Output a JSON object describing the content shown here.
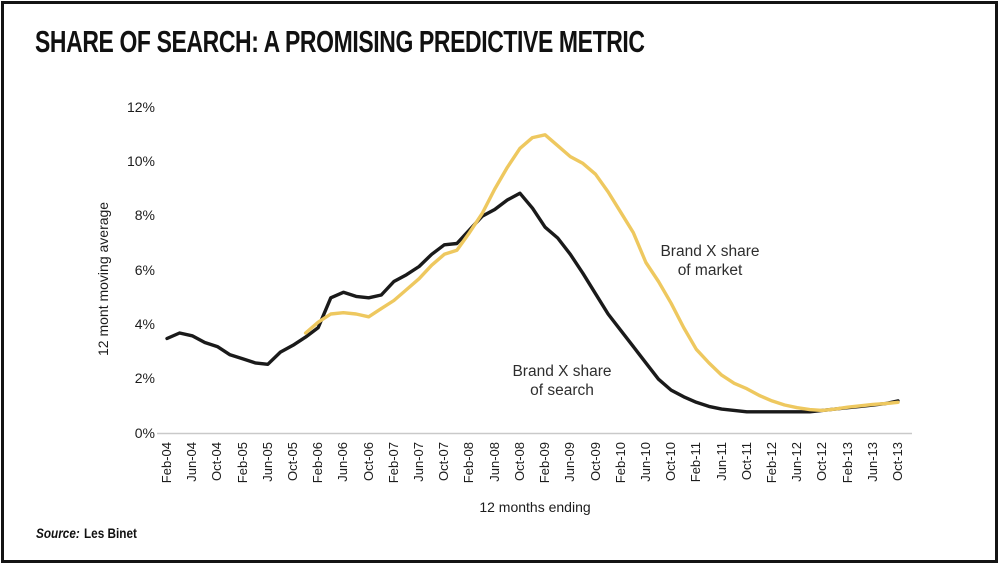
{
  "header": {
    "title": "SHARE OF SEARCH: A PROMISING PREDICTIVE METRIC"
  },
  "footer": {
    "source_label": "Source:",
    "source_value": "Les Binet"
  },
  "chart_data": {
    "type": "line",
    "title": "SHARE OF SEARCH: A PROMISING PREDICTIVE METRIC",
    "xlabel": "12 months ending",
    "ylabel": "12 mont moving average",
    "ylim": [
      0,
      12
    ],
    "y_tick_labels": [
      "0%",
      "2%",
      "4%",
      "6%",
      "8%",
      "10%",
      "12%"
    ],
    "x_tick_labels": [
      "Feb-04",
      "Jun-04",
      "Oct-04",
      "Feb-05",
      "Jun-05",
      "Oct-05",
      "Feb-06",
      "Jun-06",
      "Oct-06",
      "Feb-07",
      "Jun-07",
      "Oct-07",
      "Feb-08",
      "Jun-08",
      "Oct-08",
      "Feb-09",
      "Jun-09",
      "Oct-09",
      "Feb-10",
      "Jun-10",
      "Oct-10",
      "Feb-11",
      "Jun-11",
      "Oct-11",
      "Feb-12",
      "Jun-12",
      "Oct-12",
      "Feb-13",
      "Jun-13",
      "Oct-13"
    ],
    "x_tick_step_months": 4,
    "x_total_months": 116,
    "grid": false,
    "legend_position": "inline-annotations",
    "series": [
      {
        "name": "Brand X share of search",
        "color": "#1a1a1a",
        "start_month": 0,
        "step_months": 2,
        "values": [
          3.5,
          3.7,
          3.6,
          3.35,
          3.2,
          2.9,
          2.75,
          2.6,
          2.55,
          3.0,
          3.25,
          3.55,
          3.9,
          5.0,
          5.2,
          5.05,
          5.0,
          5.1,
          5.6,
          5.85,
          6.15,
          6.6,
          6.95,
          7.0,
          7.5,
          8.0,
          8.25,
          8.6,
          8.85,
          8.3,
          7.6,
          7.2,
          6.6,
          5.9,
          5.15,
          4.4,
          3.8,
          3.2,
          2.6,
          2.0,
          1.6,
          1.35,
          1.15,
          1.0,
          0.9,
          0.85,
          0.8,
          0.8,
          0.8,
          0.8,
          0.8,
          0.8,
          0.85,
          0.9,
          0.95,
          1.0,
          1.05,
          1.1,
          1.2
        ]
      },
      {
        "name": "Brand X share of market",
        "color": "#eec85f",
        "start_month": 22,
        "step_months": 2,
        "values": [
          3.7,
          4.1,
          4.4,
          4.45,
          4.4,
          4.3,
          4.6,
          4.9,
          5.3,
          5.7,
          6.2,
          6.6,
          6.75,
          7.4,
          8.1,
          9.0,
          9.8,
          10.5,
          10.9,
          11.0,
          10.6,
          10.2,
          9.95,
          9.55,
          8.9,
          8.15,
          7.4,
          6.3,
          5.6,
          4.8,
          3.9,
          3.1,
          2.6,
          2.15,
          1.85,
          1.65,
          1.4,
          1.2,
          1.05,
          0.95,
          0.88,
          0.85,
          0.9,
          0.97,
          1.02,
          1.07,
          1.1,
          1.15
        ]
      }
    ],
    "annotations": [
      {
        "text_line1": "Brand X share",
        "text_line2": "of search",
        "series": "Brand X share of search"
      },
      {
        "text_line1": "Brand X share",
        "text_line2": "of market",
        "series": "Brand X share of market"
      }
    ]
  }
}
